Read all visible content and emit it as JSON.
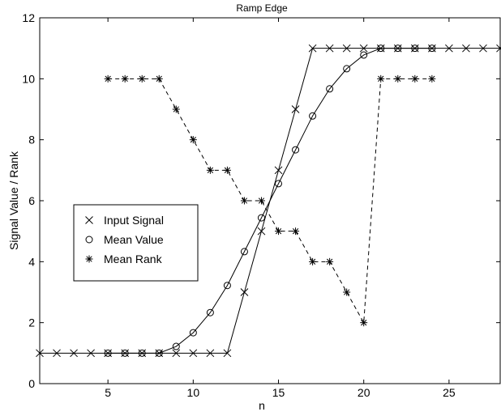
{
  "chart_data": {
    "type": "line",
    "title": "Ramp Edge",
    "xlabel": "n",
    "ylabel": "Signal Value / Rank",
    "xlim": [
      1,
      28
    ],
    "ylim": [
      0,
      12
    ],
    "xticks": [
      5,
      10,
      15,
      20,
      25
    ],
    "yticks": [
      0,
      2,
      4,
      6,
      8,
      10,
      12
    ],
    "grid": false,
    "legend_position": "middle-left",
    "series": [
      {
        "name": "Input Signal",
        "marker": "x",
        "line": "solid",
        "color": "#000000",
        "x": [
          1,
          2,
          3,
          4,
          5,
          6,
          7,
          8,
          9,
          10,
          11,
          12,
          13,
          14,
          15,
          16,
          17,
          18,
          19,
          20,
          21,
          22,
          23,
          24,
          25,
          26,
          27,
          28
        ],
        "values": [
          1,
          1,
          1,
          1,
          1,
          1,
          1,
          1,
          1,
          1,
          1,
          1,
          3,
          5,
          7,
          9,
          11,
          11,
          11,
          11,
          11,
          11,
          11,
          11,
          11,
          11,
          11,
          11
        ]
      },
      {
        "name": "Mean Value",
        "marker": "o",
        "line": "solid",
        "color": "#000000",
        "x": [
          5,
          6,
          7,
          8,
          9,
          10,
          11,
          12,
          13,
          14,
          15,
          16,
          17,
          18,
          19,
          20,
          21,
          22,
          23,
          24
        ],
        "values": [
          1,
          1,
          1,
          1,
          1.22,
          1.67,
          2.33,
          3.22,
          4.33,
          5.44,
          6.56,
          7.67,
          8.78,
          9.67,
          10.33,
          10.78,
          11,
          11,
          11,
          11
        ]
      },
      {
        "name": "Mean Rank",
        "marker": "*",
        "line": "dashed",
        "color": "#000000",
        "x": [
          5,
          6,
          7,
          8,
          9,
          10,
          11,
          12,
          13,
          14,
          15,
          16,
          17,
          18,
          19,
          20,
          21,
          22,
          23,
          24
        ],
        "values": [
          10,
          10,
          10,
          10,
          9,
          8,
          7,
          7,
          6,
          6,
          5,
          5,
          4,
          4,
          3,
          2,
          10,
          10,
          10,
          10
        ]
      }
    ]
  }
}
